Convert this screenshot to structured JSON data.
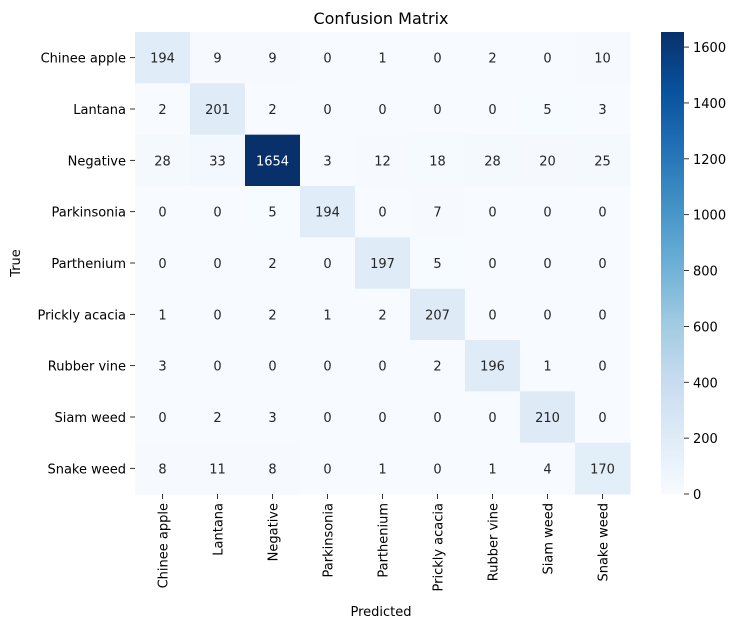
{
  "chart_data": {
    "type": "heatmap",
    "title": "Confusion Matrix",
    "xlabel": "Predicted",
    "ylabel": "True",
    "x_categories": [
      "Chinee apple",
      "Lantana",
      "Negative",
      "Parkinsonia",
      "Parthenium",
      "Prickly acacia",
      "Rubber vine",
      "Siam weed",
      "Snake weed"
    ],
    "y_categories": [
      "Chinee apple",
      "Lantana",
      "Negative",
      "Parkinsonia",
      "Parthenium",
      "Prickly acacia",
      "Rubber vine",
      "Siam weed",
      "Snake weed"
    ],
    "values": [
      [
        194,
        9,
        9,
        0,
        1,
        0,
        2,
        0,
        10
      ],
      [
        2,
        201,
        2,
        0,
        0,
        0,
        0,
        5,
        3
      ],
      [
        28,
        33,
        1654,
        3,
        12,
        18,
        28,
        20,
        25
      ],
      [
        0,
        0,
        5,
        194,
        0,
        7,
        0,
        0,
        0
      ],
      [
        0,
        0,
        2,
        0,
        197,
        5,
        0,
        0,
        0
      ],
      [
        1,
        0,
        2,
        1,
        2,
        207,
        0,
        0,
        0
      ],
      [
        3,
        0,
        0,
        0,
        0,
        2,
        196,
        1,
        0
      ],
      [
        0,
        2,
        3,
        0,
        0,
        0,
        0,
        210,
        0
      ],
      [
        8,
        11,
        8,
        0,
        1,
        0,
        1,
        4,
        170
      ]
    ],
    "colormap": "Blues",
    "colorbar": {
      "min": 0,
      "max": 1654,
      "ticks": [
        0,
        200,
        400,
        600,
        800,
        1000,
        1200,
        1400,
        1600
      ]
    },
    "grid": false
  }
}
